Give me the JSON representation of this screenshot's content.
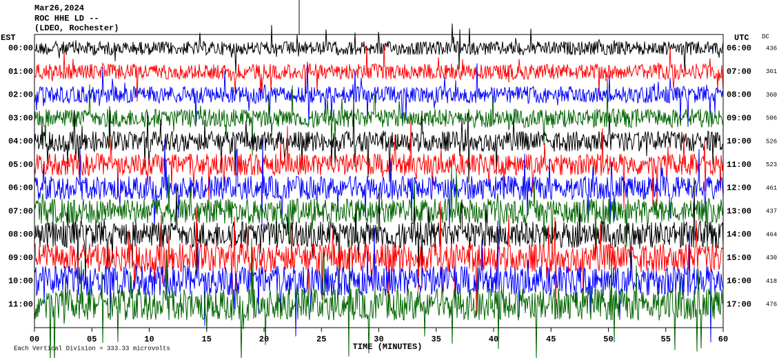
{
  "chart_data": {
    "type": "helicorder",
    "title_lines": [
      "Mar26,2024",
      "ROC HHE LD --",
      "(LDEO, Rochester)"
    ],
    "left_label": "EST",
    "right_label": "UTC",
    "dc_label": "DC",
    "xlabel": "TIME (MINUTES)",
    "footnote": "Each Vertical Division =  333.33 microvolts",
    "xlim": [
      0,
      60
    ],
    "xticks": [
      {
        "value": 0,
        "label": "00"
      },
      {
        "value": 5,
        "label": "05"
      },
      10,
      15,
      20,
      25,
      30,
      35,
      40,
      45,
      50,
      55,
      60
    ],
    "colors": [
      "#000000",
      "#ff0000",
      "#0000ff",
      "#006400"
    ],
    "rows": [
      {
        "est": "00:00",
        "utc": "06:00",
        "dc": 436
      },
      {
        "est": "01:00",
        "utc": "07:00",
        "dc": 361
      },
      {
        "est": "02:00",
        "utc": "08:00",
        "dc": 360
      },
      {
        "est": "03:00",
        "utc": "09:00",
        "dc": 506
      },
      {
        "est": "04:00",
        "utc": "10:00",
        "dc": 526
      },
      {
        "est": "05:00",
        "utc": "11:00",
        "dc": 523
      },
      {
        "est": "06:00",
        "utc": "12:00",
        "dc": 461
      },
      {
        "est": "07:00",
        "utc": "13:00",
        "dc": 437
      },
      {
        "est": "08:00",
        "utc": "14:00",
        "dc": 464
      },
      {
        "est": "09:00",
        "utc": "15:00",
        "dc": 430
      },
      {
        "est": "10:00",
        "utc": "16:00",
        "dc": 418
      },
      {
        "est": "11:00",
        "utc": "17:00",
        "dc": 476
      }
    ]
  }
}
